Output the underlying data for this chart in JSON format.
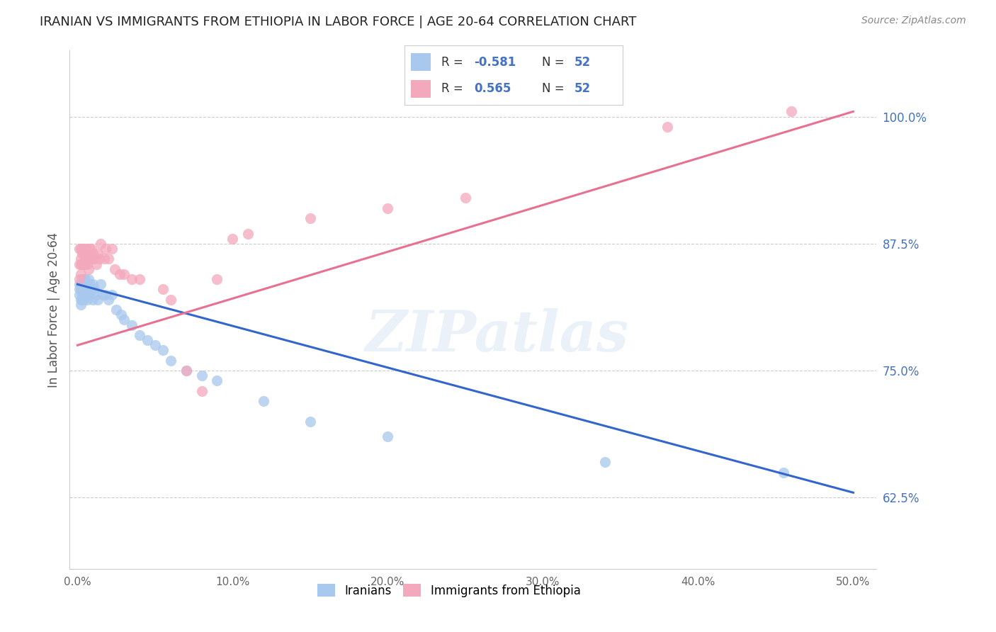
{
  "title": "IRANIAN VS IMMIGRANTS FROM ETHIOPIA IN LABOR FORCE | AGE 20-64 CORRELATION CHART",
  "source": "Source: ZipAtlas.com",
  "ylabel": "In Labor Force | Age 20-64",
  "ytick_values": [
    0.625,
    0.75,
    0.875,
    1.0
  ],
  "ytick_labels": [
    "62.5%",
    "75.0%",
    "87.5%",
    "100.0%"
  ],
  "xtick_values": [
    0.0,
    0.1,
    0.2,
    0.3,
    0.4,
    0.5
  ],
  "xtick_labels": [
    "0.0%",
    "10.0%",
    "20.0%",
    "30.0%",
    "40.0%",
    "50.0%"
  ],
  "xlim": [
    -0.005,
    0.515
  ],
  "ylim": [
    0.555,
    1.065
  ],
  "blue_color": "#A8C8ED",
  "pink_color": "#F4A8BC",
  "blue_line_color": "#3366CC",
  "pink_line_color": "#E87090",
  "watermark": "ZIPatlas",
  "title_fontsize": 13,
  "source_fontsize": 10,
  "legend_blue_R": "-0.581",
  "legend_pink_R": "0.565",
  "legend_N": "52",
  "iran_x": [
    0.001,
    0.001,
    0.001,
    0.002,
    0.002,
    0.002,
    0.002,
    0.003,
    0.003,
    0.003,
    0.003,
    0.004,
    0.004,
    0.004,
    0.005,
    0.005,
    0.005,
    0.006,
    0.006,
    0.006,
    0.007,
    0.007,
    0.008,
    0.008,
    0.009,
    0.01,
    0.01,
    0.011,
    0.012,
    0.013,
    0.015,
    0.016,
    0.018,
    0.02,
    0.022,
    0.025,
    0.028,
    0.03,
    0.035,
    0.04,
    0.045,
    0.05,
    0.055,
    0.06,
    0.07,
    0.08,
    0.09,
    0.12,
    0.15,
    0.2,
    0.34,
    0.455
  ],
  "iran_y": [
    0.835,
    0.83,
    0.825,
    0.835,
    0.83,
    0.82,
    0.815,
    0.84,
    0.835,
    0.825,
    0.82,
    0.84,
    0.83,
    0.82,
    0.84,
    0.835,
    0.825,
    0.835,
    0.825,
    0.82,
    0.84,
    0.83,
    0.835,
    0.825,
    0.83,
    0.835,
    0.82,
    0.83,
    0.825,
    0.82,
    0.835,
    0.825,
    0.825,
    0.82,
    0.825,
    0.81,
    0.805,
    0.8,
    0.795,
    0.785,
    0.78,
    0.775,
    0.77,
    0.76,
    0.75,
    0.745,
    0.74,
    0.72,
    0.7,
    0.685,
    0.66,
    0.65
  ],
  "eth_x": [
    0.001,
    0.001,
    0.001,
    0.002,
    0.002,
    0.002,
    0.002,
    0.003,
    0.003,
    0.003,
    0.004,
    0.004,
    0.004,
    0.005,
    0.005,
    0.005,
    0.006,
    0.006,
    0.007,
    0.007,
    0.007,
    0.008,
    0.008,
    0.009,
    0.009,
    0.01,
    0.011,
    0.012,
    0.013,
    0.014,
    0.015,
    0.017,
    0.018,
    0.02,
    0.022,
    0.024,
    0.027,
    0.03,
    0.035,
    0.04,
    0.055,
    0.06,
    0.07,
    0.08,
    0.09,
    0.1,
    0.11,
    0.15,
    0.2,
    0.25,
    0.38,
    0.46
  ],
  "eth_y": [
    0.84,
    0.855,
    0.87,
    0.845,
    0.855,
    0.87,
    0.86,
    0.855,
    0.87,
    0.865,
    0.855,
    0.87,
    0.865,
    0.855,
    0.87,
    0.86,
    0.865,
    0.855,
    0.87,
    0.86,
    0.85,
    0.87,
    0.86,
    0.87,
    0.86,
    0.865,
    0.86,
    0.855,
    0.865,
    0.86,
    0.875,
    0.86,
    0.87,
    0.86,
    0.87,
    0.85,
    0.845,
    0.845,
    0.84,
    0.84,
    0.83,
    0.82,
    0.75,
    0.73,
    0.84,
    0.88,
    0.885,
    0.9,
    0.91,
    0.92,
    0.99,
    1.005
  ],
  "iran_line_x0": 0.0,
  "iran_line_y0": 0.835,
  "iran_line_x1": 0.5,
  "iran_line_y1": 0.63,
  "eth_line_x0": 0.0,
  "eth_line_y0": 0.775,
  "eth_line_x1": 0.5,
  "eth_line_y1": 1.005
}
